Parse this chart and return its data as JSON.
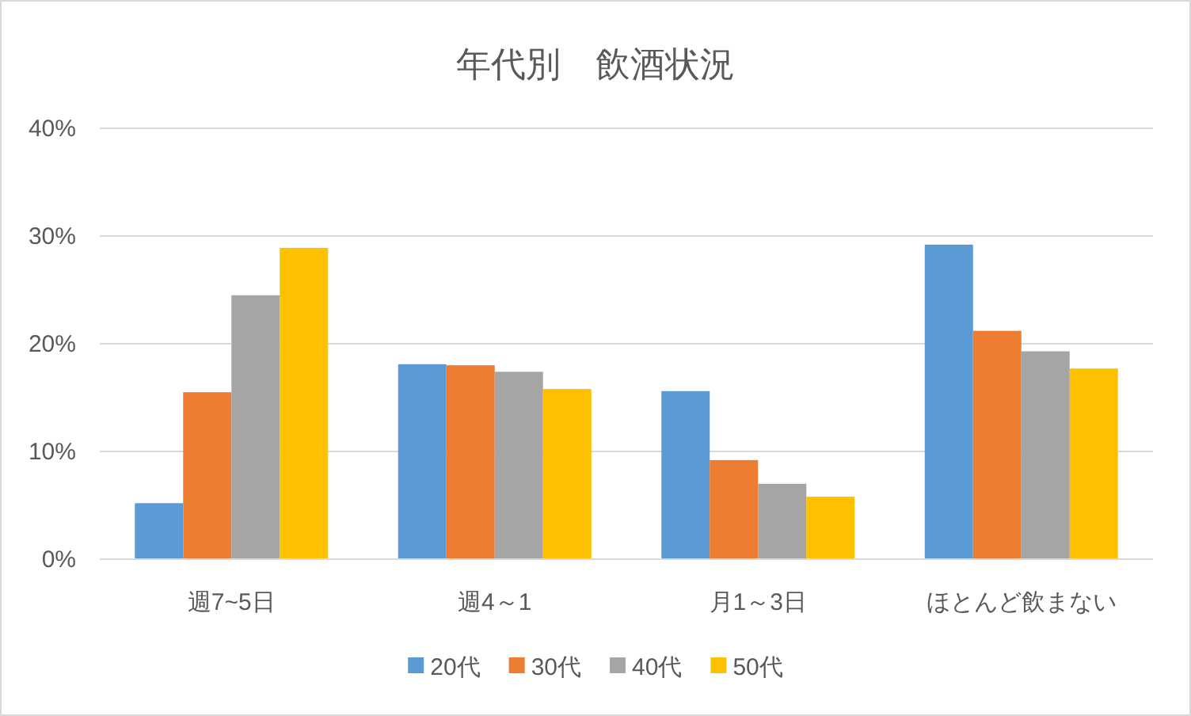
{
  "chart_data": {
    "type": "bar",
    "title": "年代別　飲酒状況",
    "categories": [
      "週7~5日",
      "週4～1",
      "月1～3日",
      "ほとんど飲まない"
    ],
    "series": [
      {
        "name": "20代",
        "color": "#5b9bd5",
        "values": [
          5.2,
          18.1,
          15.6,
          29.2
        ]
      },
      {
        "name": "30代",
        "color": "#ed7d31",
        "values": [
          15.5,
          18.0,
          9.2,
          21.2
        ]
      },
      {
        "name": "40代",
        "color": "#a5a5a5",
        "values": [
          24.5,
          17.4,
          7.0,
          19.3
        ]
      },
      {
        "name": "50代",
        "color": "#ffc000",
        "values": [
          28.9,
          15.8,
          5.8,
          17.7
        ]
      }
    ],
    "ylim": [
      0,
      40
    ],
    "yticks": [
      {
        "value": 0,
        "label": "0%"
      },
      {
        "value": 10,
        "label": "10%"
      },
      {
        "value": 20,
        "label": "20%"
      },
      {
        "value": 30,
        "label": "30%"
      },
      {
        "value": 40,
        "label": "40%"
      }
    ],
    "grid": "y",
    "legend": "bottom"
  }
}
